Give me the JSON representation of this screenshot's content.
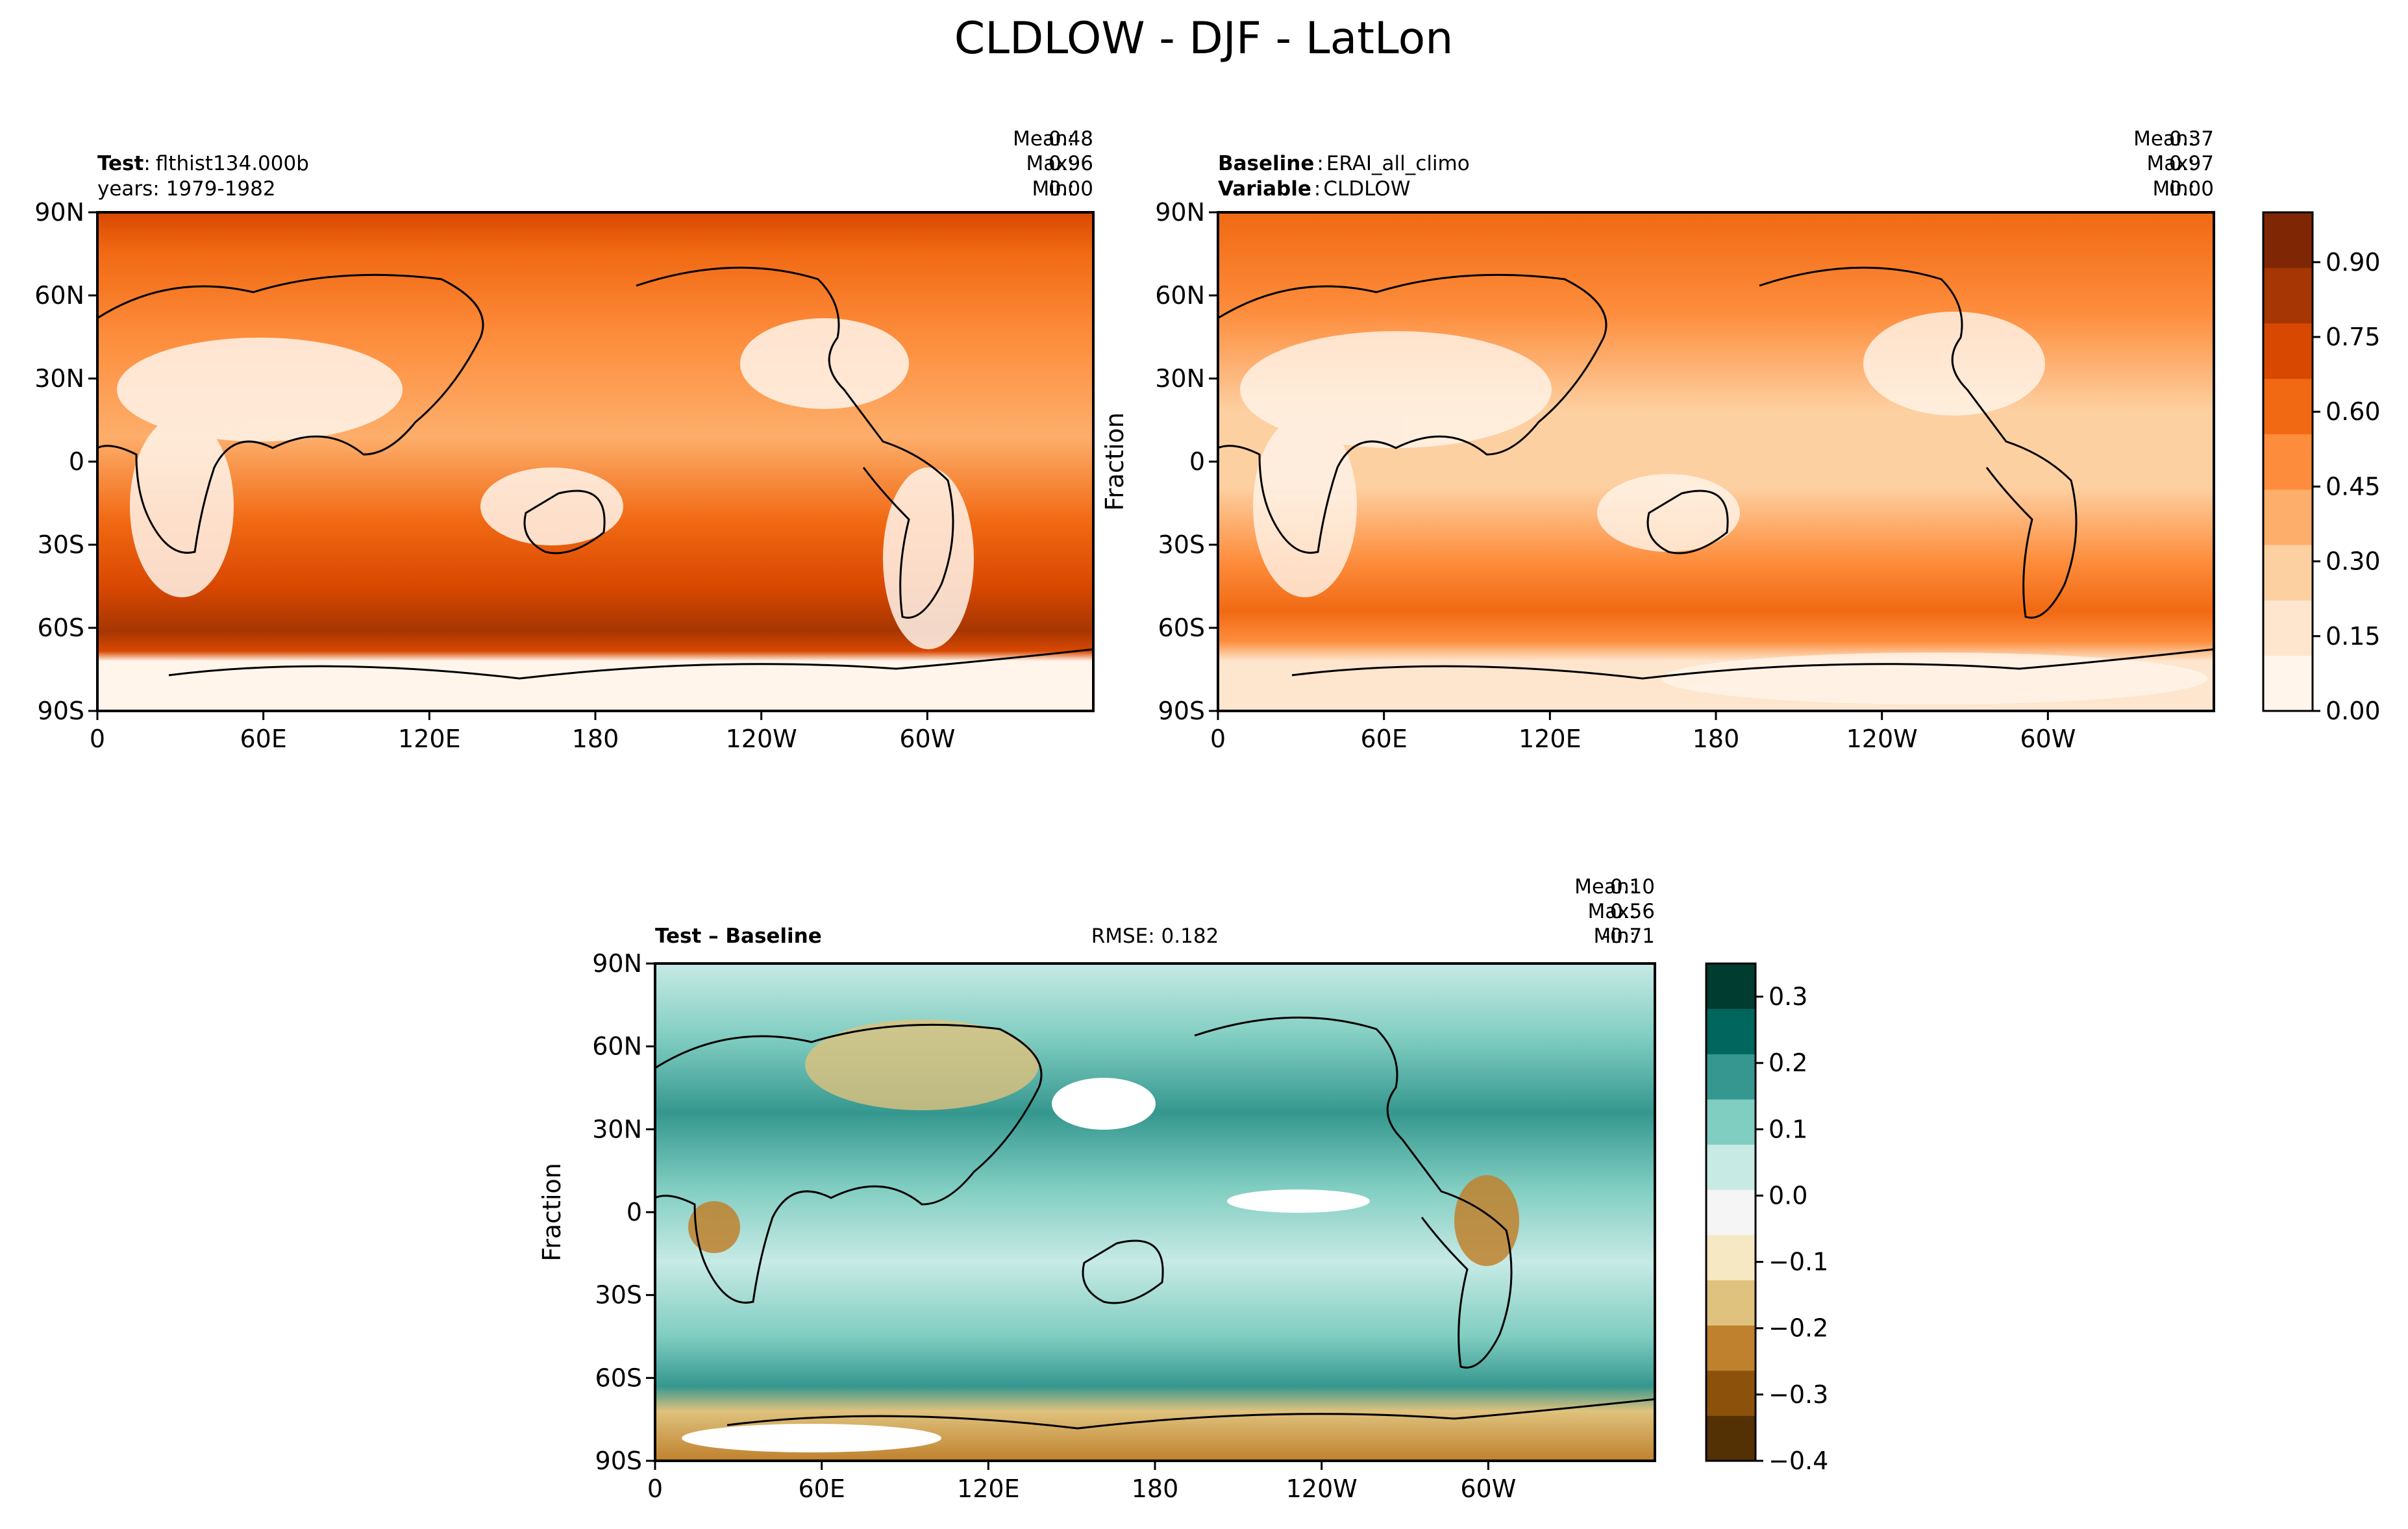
{
  "figure": {
    "suptitle": "CLDLOW - DJF - LatLon"
  },
  "axis_ticks": {
    "lat": [
      {
        "value": 90,
        "label": "90N"
      },
      {
        "value": 60,
        "label": "60N"
      },
      {
        "value": 30,
        "label": "30N"
      },
      {
        "value": 0,
        "label": "0"
      },
      {
        "value": -30,
        "label": "30S"
      },
      {
        "value": -60,
        "label": "60S"
      },
      {
        "value": -90,
        "label": "90S"
      }
    ],
    "lon": [
      {
        "value": 0,
        "label": "0"
      },
      {
        "value": 60,
        "label": "60E"
      },
      {
        "value": 120,
        "label": "120E"
      },
      {
        "value": 180,
        "label": "180"
      },
      {
        "value": 240,
        "label": "120W"
      },
      {
        "value": 300,
        "label": "60W"
      }
    ]
  },
  "colors": {
    "oranges": [
      "#fff5eb",
      "#fee6ce",
      "#fdd0a2",
      "#fdae6b",
      "#fd8d3c",
      "#f16913",
      "#d94801",
      "#a63603",
      "#7f2704"
    ],
    "brbg": [
      "#543005",
      "#8c510a",
      "#bf812d",
      "#dfc27d",
      "#f6e8c3",
      "#f5f5f5",
      "#c7eae5",
      "#80cdc1",
      "#35978f",
      "#01665e",
      "#003c30"
    ]
  },
  "chart_data": [
    {
      "id": "test",
      "type": "heatmap",
      "title_bold": "Test",
      "title_sep": ":",
      "title_value": "flthist134.000b",
      "subtitle": "years: 1979-1982",
      "stats": [
        {
          "label": "Mean:",
          "value": "0.48"
        },
        {
          "label": "Max:",
          "value": "0.96"
        },
        {
          "label": "Min:",
          "value": "0.00"
        }
      ],
      "ylabel": "",
      "xlim": [
        0,
        360
      ],
      "ylim": [
        -90,
        90
      ],
      "variable": "CLDLOW",
      "units": "Fraction"
    },
    {
      "id": "baseline",
      "type": "heatmap",
      "title_bold": "Baseline",
      "title_sep": ":",
      "title_value": "ERAI_all_climo",
      "subtitle_bold": "Variable",
      "subtitle_sep": ":",
      "subtitle_value": "CLDLOW",
      "stats": [
        {
          "label": "Mean:",
          "value": "0.37"
        },
        {
          "label": "Max:",
          "value": "0.97"
        },
        {
          "label": "Min:",
          "value": "0.00"
        }
      ],
      "ylabel": "Fraction",
      "xlim": [
        0,
        360
      ],
      "ylim": [
        -90,
        90
      ],
      "colorbar": {
        "range": [
          0,
          1.0
        ],
        "ticks": [
          {
            "value": 0.0,
            "label": "0.00"
          },
          {
            "value": 0.15,
            "label": "0.15"
          },
          {
            "value": 0.3,
            "label": "0.30"
          },
          {
            "value": 0.45,
            "label": "0.45"
          },
          {
            "value": 0.6,
            "label": "0.60"
          },
          {
            "value": 0.75,
            "label": "0.75"
          },
          {
            "value": 0.9,
            "label": "0.90"
          }
        ]
      }
    },
    {
      "id": "diff",
      "type": "heatmap",
      "title_bold": "Test – Baseline",
      "rmse": "RMSE: 0.182",
      "stats": [
        {
          "label": "Mean:",
          "value": "0.10"
        },
        {
          "label": "Max:",
          "value": "0.56"
        },
        {
          "label": "Min:",
          "value": "-0.71"
        }
      ],
      "ylabel": "Fraction",
      "xlim": [
        0,
        360
      ],
      "ylim": [
        -90,
        90
      ],
      "colorbar": {
        "range": [
          -0.4,
          0.35
        ],
        "ticks": [
          {
            "value": 0.3,
            "label": "0.3"
          },
          {
            "value": 0.2,
            "label": "0.2"
          },
          {
            "value": 0.1,
            "label": "0.1"
          },
          {
            "value": 0.0,
            "label": "0.0"
          },
          {
            "value": -0.1,
            "label": "−0.1"
          },
          {
            "value": -0.2,
            "label": "−0.2"
          },
          {
            "value": -0.3,
            "label": "−0.3"
          },
          {
            "value": -0.4,
            "label": "−0.4"
          }
        ]
      }
    }
  ]
}
